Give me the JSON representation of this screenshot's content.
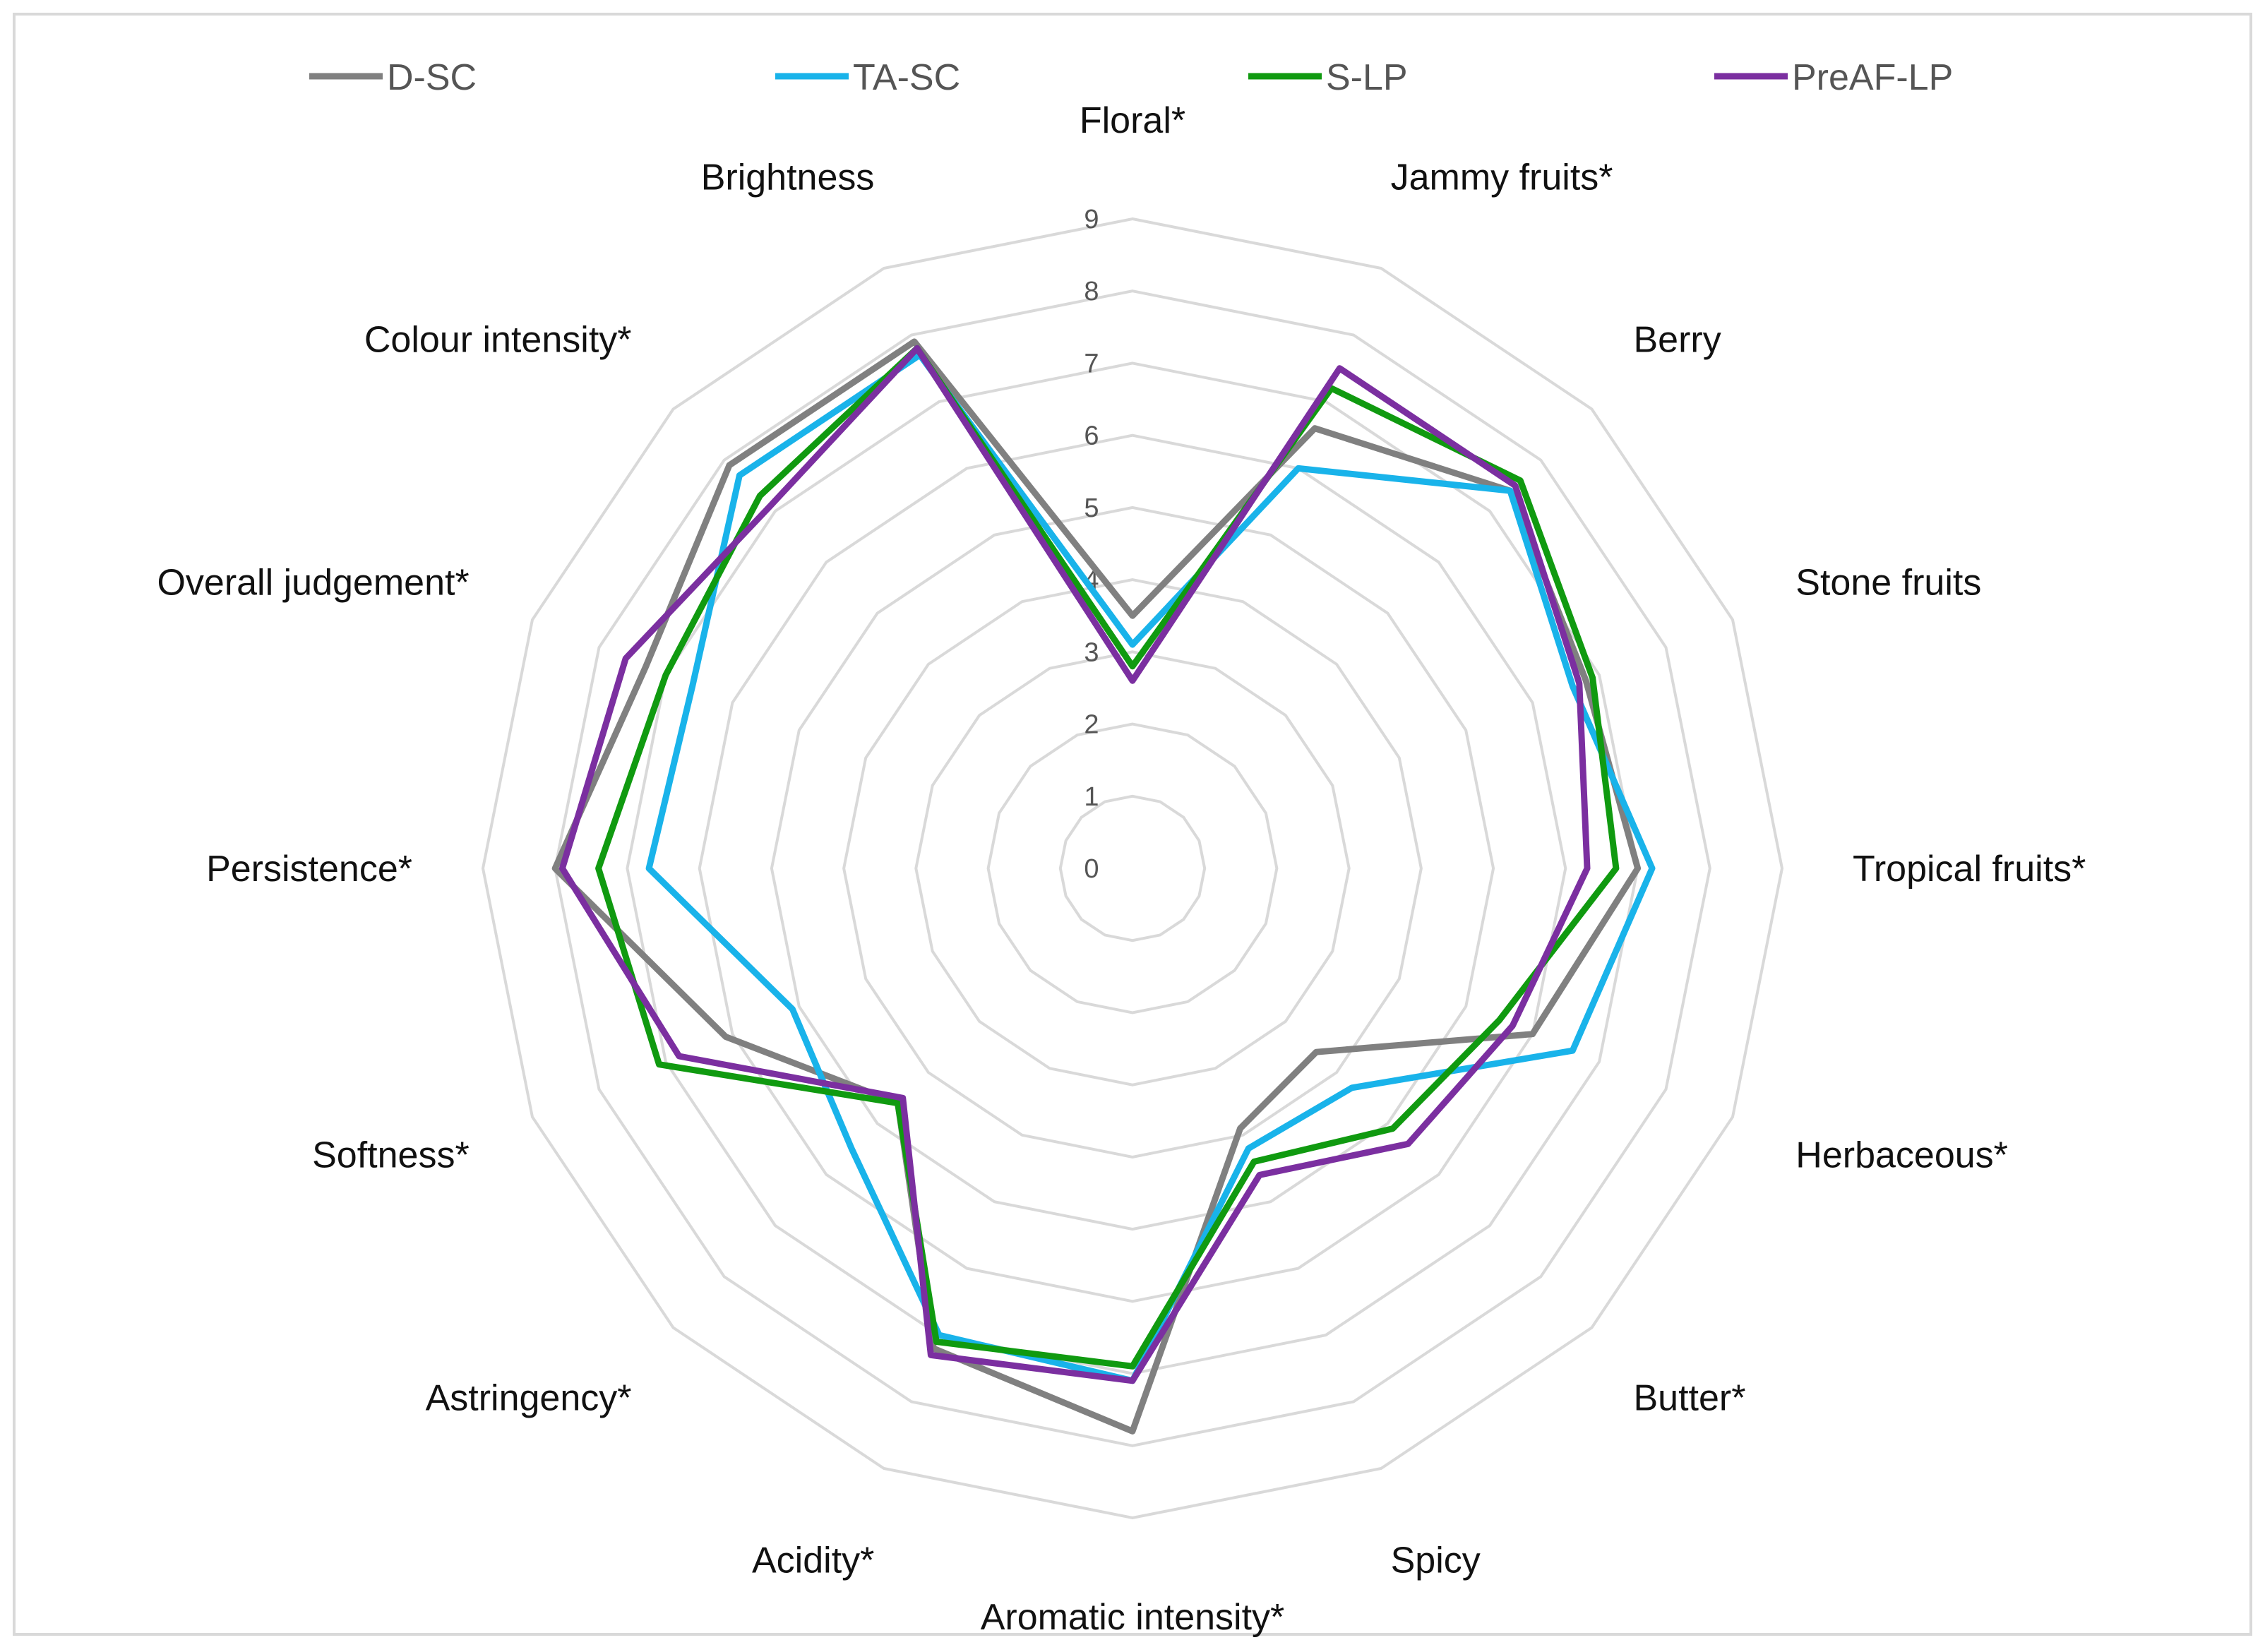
{
  "chart_data": {
    "type": "radar",
    "title": "",
    "scale": {
      "min": 0,
      "max": 9,
      "step": 1
    },
    "grid": true,
    "legend_position": "top",
    "axes": [
      "Floral*",
      "Jammy fruits*",
      "Berry",
      "Stone fruits",
      "Tropical fruits*",
      "Herbaceous*",
      "Butter*",
      "Spicy",
      "Aromatic intensity*",
      "Acidity*",
      "Astringency*",
      "Softness*",
      "Persistence*",
      "Overall judgement*",
      "Colour intensity*",
      "Brightness"
    ],
    "tick_labels": [
      "0",
      "1",
      "2",
      "3",
      "4",
      "5",
      "6",
      "7",
      "8",
      "9"
    ],
    "series": [
      {
        "name": "D-SC",
        "color": "#808080",
        "values": [
          3.5,
          6.6,
          7.4,
          6.8,
          7.0,
          6.0,
          3.6,
          3.9,
          7.8,
          7.2,
          4.6,
          6.1,
          8.0,
          7.3,
          7.9,
          7.9
        ]
      },
      {
        "name": "TA-SC",
        "color": "#19b3ea",
        "values": [
          3.1,
          6.0,
          7.4,
          6.6,
          7.2,
          6.6,
          4.3,
          4.2,
          7.1,
          7.0,
          5.5,
          5.1,
          6.7,
          6.6,
          7.7,
          7.7
        ]
      },
      {
        "name": "S-LP",
        "color": "#109a10",
        "values": [
          2.8,
          7.2,
          7.6,
          6.9,
          6.7,
          5.5,
          5.1,
          4.4,
          6.9,
          7.1,
          4.6,
          7.1,
          7.4,
          7.0,
          7.3,
          7.8
        ]
      },
      {
        "name": "PreAF-LP",
        "color": "#7b2fa0",
        "values": [
          2.6,
          7.5,
          7.5,
          6.7,
          6.3,
          5.7,
          5.4,
          4.6,
          7.1,
          7.3,
          4.5,
          6.8,
          7.9,
          7.6,
          7.1,
          7.8
        ]
      }
    ]
  }
}
